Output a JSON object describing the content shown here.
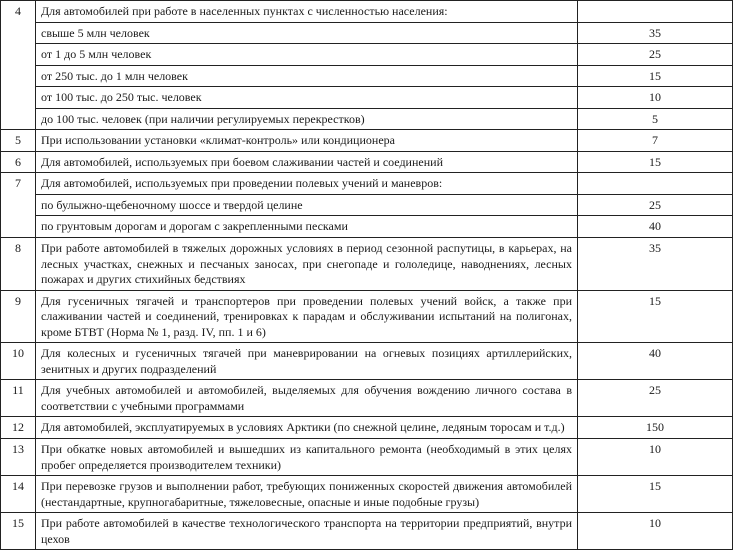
{
  "rows": [
    {
      "num": "4",
      "text": "Для автомобилей при работе в населенных пунктах с численностью населения:",
      "value": "",
      "span": 6
    },
    {
      "num": null,
      "text": "свыше 5 млн человек",
      "value": "35"
    },
    {
      "num": null,
      "text": "от 1 до 5 млн человек",
      "value": "25"
    },
    {
      "num": null,
      "text": "от 250 тыс. до 1 млн человек",
      "value": "15"
    },
    {
      "num": null,
      "text": "от 100 тыс. до 250 тыс. человек",
      "value": "10"
    },
    {
      "num": null,
      "text": "до 100 тыс. человек (при наличии регулируемых перекрестков)",
      "value": "5"
    },
    {
      "num": "5",
      "text": "При использовании установки «климат-контроль» или кондиционера",
      "value": "7"
    },
    {
      "num": "6",
      "text": "Для автомобилей, используемых при боевом слаживании частей и соединений",
      "value": "15"
    },
    {
      "num": "7",
      "text": "Для автомобилей, используемых при проведении полевых учений и маневров:",
      "value": "",
      "span": 3
    },
    {
      "num": null,
      "text": "по булыжно-щебеночному шоссе и твердой целине",
      "value": "25"
    },
    {
      "num": null,
      "text": "по грунтовым дорогам и дорогам с закрепленными песками",
      "value": "40"
    },
    {
      "num": "8",
      "text": "При работе автомобилей в тяжелых дорожных условиях в период сезонной распутицы, в карьерах, на лесных участках, снежных и песчаных заносах, при  снегопаде и гололедице, наводнениях, лесных пожарах и других стихийных бедствиях",
      "value": "35"
    },
    {
      "num": "9",
      "text": "Для гусеничных тягачей и транспортеров при проведении полевых учений войск, а также при слаживании частей и соединений, тренировках к парадам и обслуживании испытаний на полигонах, кроме БТВТ (Норма № 1, разд. IV, пп. 1 и 6)",
      "value": "15"
    },
    {
      "num": "10",
      "text": "Для колесных и гусеничных тягачей при маневрировании на огневых позициях артиллерийских, зенитных и других подразделений",
      "value": "40"
    },
    {
      "num": "11",
      "text": "Для учебных автомобилей и автомобилей, выделяемых для обучения вождению личного состава в соответствии с учебными программами",
      "value": "25"
    },
    {
      "num": "12",
      "text": "Для автомобилей, эксплуатируемых в условиях Арктики (по снежной целине, ледяным торосам и т.д.)",
      "value": "150"
    },
    {
      "num": "13",
      "text": "При обкатке новых автомобилей и вышедших из капитального ремонта (необходимый в этих целях пробег определяется производителем техники)",
      "value": "10"
    },
    {
      "num": "14",
      "text": "При перевозке грузов и выполнении работ, требующих пониженных скоростей движения автомобилей (нестандартные, крупногабаритные, тяжеловесные, опасные и иные подобные грузы)",
      "value": "15"
    },
    {
      "num": "15",
      "text": "При работе автомобилей в качестве технологического транспорта на территории предприятий, внутри цехов",
      "value": "10"
    }
  ]
}
